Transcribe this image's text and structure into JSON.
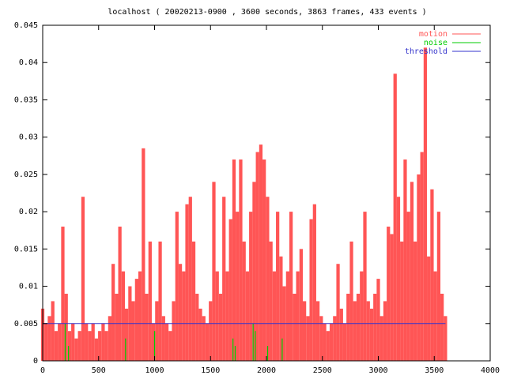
{
  "chart_data": {
    "type": "impulse",
    "title": "localhost ( 20020213-0900 , 3600 seconds, 3863 frames, 433 events )",
    "xlim": [
      0,
      4000
    ],
    "xticks": [
      0,
      500,
      1000,
      1500,
      2000,
      2500,
      3000,
      3500,
      4000
    ],
    "ylim": [
      0,
      0.045
    ],
    "yticks": [
      0,
      0.005,
      0.01,
      0.015,
      0.02,
      0.025,
      0.03,
      0.035,
      0.04,
      0.045
    ],
    "legend": "top-right",
    "series": [
      {
        "name": "motion",
        "color": "#ff5555",
        "style": "impulses",
        "x": [
          0,
          30,
          60,
          90,
          120,
          150,
          180,
          210,
          240,
          270,
          300,
          330,
          360,
          390,
          420,
          450,
          480,
          510,
          540,
          570,
          600,
          630,
          660,
          690,
          720,
          750,
          780,
          810,
          840,
          870,
          900,
          930,
          960,
          990,
          1020,
          1050,
          1080,
          1110,
          1140,
          1170,
          1200,
          1230,
          1260,
          1290,
          1320,
          1350,
          1380,
          1410,
          1440,
          1470,
          1500,
          1530,
          1560,
          1590,
          1620,
          1650,
          1680,
          1710,
          1740,
          1770,
          1800,
          1830,
          1860,
          1890,
          1920,
          1950,
          1980,
          2010,
          2040,
          2070,
          2100,
          2130,
          2160,
          2190,
          2220,
          2250,
          2280,
          2310,
          2340,
          2370,
          2400,
          2430,
          2460,
          2490,
          2520,
          2550,
          2580,
          2610,
          2640,
          2670,
          2700,
          2730,
          2760,
          2790,
          2820,
          2850,
          2880,
          2910,
          2940,
          2970,
          3000,
          3030,
          3060,
          3090,
          3120,
          3150,
          3180,
          3210,
          3240,
          3270,
          3300,
          3330,
          3360,
          3390,
          3420,
          3450,
          3480,
          3510,
          3540,
          3570,
          3600
        ],
        "values": [
          0.007,
          0.005,
          0.006,
          0.008,
          0.004,
          0.005,
          0.018,
          0.009,
          0.004,
          0.005,
          0.003,
          0.004,
          0.022,
          0.005,
          0.004,
          0.005,
          0.003,
          0.004,
          0.005,
          0.004,
          0.006,
          0.013,
          0.009,
          0.018,
          0.012,
          0.007,
          0.01,
          0.008,
          0.011,
          0.012,
          0.0285,
          0.009,
          0.016,
          0.005,
          0.008,
          0.016,
          0.006,
          0.005,
          0.004,
          0.008,
          0.02,
          0.013,
          0.012,
          0.021,
          0.022,
          0.016,
          0.009,
          0.007,
          0.006,
          0.005,
          0.008,
          0.024,
          0.012,
          0.009,
          0.022,
          0.012,
          0.019,
          0.027,
          0.02,
          0.027,
          0.016,
          0.012,
          0.02,
          0.024,
          0.028,
          0.029,
          0.027,
          0.022,
          0.016,
          0.012,
          0.02,
          0.014,
          0.01,
          0.012,
          0.02,
          0.009,
          0.012,
          0.015,
          0.008,
          0.006,
          0.019,
          0.021,
          0.008,
          0.006,
          0.005,
          0.004,
          0.005,
          0.006,
          0.013,
          0.007,
          0.005,
          0.009,
          0.016,
          0.008,
          0.009,
          0.012,
          0.02,
          0.008,
          0.007,
          0.009,
          0.011,
          0.006,
          0.008,
          0.018,
          0.017,
          0.0385,
          0.022,
          0.016,
          0.027,
          0.02,
          0.024,
          0.016,
          0.025,
          0.028,
          0.042,
          0.014,
          0.023,
          0.012,
          0.02,
          0.009,
          0.006
        ]
      },
      {
        "name": "noise",
        "color": "#00cc00",
        "style": "impulses",
        "x": [
          200,
          230,
          740,
          1000,
          1700,
          1720,
          1880,
          1900,
          2010,
          2140
        ],
        "values": [
          0.005,
          0.002,
          0.003,
          0.004,
          0.003,
          0.002,
          0.005,
          0.004,
          0.002,
          0.003
        ]
      },
      {
        "name": "threshold",
        "color": "#3333cc",
        "style": "line",
        "x": [
          0,
          3600
        ],
        "values": [
          0.005,
          0.005
        ]
      }
    ]
  }
}
